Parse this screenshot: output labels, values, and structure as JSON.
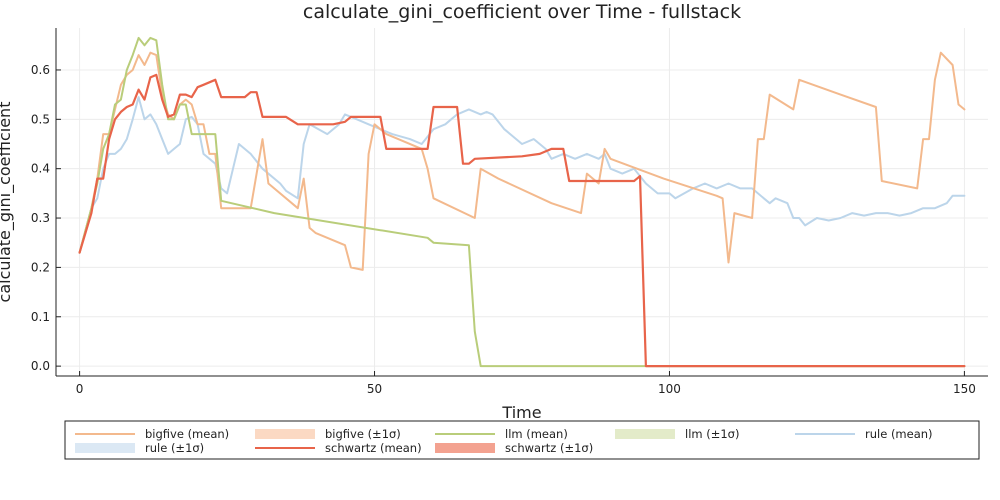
{
  "chart_data": {
    "type": "line",
    "title": "calculate_gini_coefficient over Time - fullstack",
    "xlabel": "Time",
    "ylabel": "calculate_gini_coefficient",
    "xlim": [
      -4,
      154
    ],
    "ylim": [
      -0.02,
      0.685
    ],
    "xticks": [
      0,
      50,
      100,
      150
    ],
    "yticks": [
      0.0,
      0.1,
      0.2,
      0.3,
      0.4,
      0.5,
      0.6
    ],
    "grid": true,
    "legend_position": "bottom",
    "series": [
      {
        "name": "bigfive (mean)",
        "color": "#f3b98d",
        "points": [
          [
            0,
            0.23
          ],
          [
            2,
            0.32
          ],
          [
            3,
            0.38
          ],
          [
            4,
            0.47
          ],
          [
            5,
            0.47
          ],
          [
            6,
            0.52
          ],
          [
            7,
            0.57
          ],
          [
            8,
            0.59
          ],
          [
            9,
            0.6
          ],
          [
            10,
            0.63
          ],
          [
            11,
            0.61
          ],
          [
            12,
            0.635
          ],
          [
            13,
            0.63
          ],
          [
            14,
            0.55
          ],
          [
            15,
            0.51
          ],
          [
            16,
            0.5
          ],
          [
            17,
            0.53
          ],
          [
            18,
            0.54
          ],
          [
            19,
            0.53
          ],
          [
            20,
            0.49
          ],
          [
            21,
            0.49
          ],
          [
            22,
            0.43
          ],
          [
            23,
            0.43
          ],
          [
            24,
            0.32
          ],
          [
            29,
            0.32
          ],
          [
            31,
            0.46
          ],
          [
            32,
            0.37
          ],
          [
            37,
            0.32
          ],
          [
            38,
            0.38
          ],
          [
            39,
            0.28
          ],
          [
            40,
            0.27
          ],
          [
            45,
            0.245
          ],
          [
            46,
            0.2
          ],
          [
            48,
            0.195
          ],
          [
            49,
            0.43
          ],
          [
            50,
            0.49
          ],
          [
            52,
            0.47
          ],
          [
            58,
            0.44
          ],
          [
            59,
            0.4
          ],
          [
            60,
            0.34
          ],
          [
            67,
            0.3
          ],
          [
            68,
            0.4
          ],
          [
            71,
            0.38
          ],
          [
            80,
            0.33
          ],
          [
            85,
            0.31
          ],
          [
            86,
            0.39
          ],
          [
            88,
            0.37
          ],
          [
            89,
            0.44
          ],
          [
            90,
            0.42
          ],
          [
            99,
            0.38
          ],
          [
            108,
            0.345
          ],
          [
            109,
            0.34
          ],
          [
            110,
            0.21
          ],
          [
            111,
            0.31
          ],
          [
            114,
            0.3
          ],
          [
            115,
            0.46
          ],
          [
            116,
            0.46
          ],
          [
            117,
            0.55
          ],
          [
            121,
            0.52
          ],
          [
            122,
            0.58
          ],
          [
            129,
            0.55
          ],
          [
            135,
            0.525
          ],
          [
            136,
            0.375
          ],
          [
            142,
            0.36
          ],
          [
            143,
            0.46
          ],
          [
            144,
            0.46
          ],
          [
            145,
            0.58
          ],
          [
            146,
            0.635
          ],
          [
            148,
            0.61
          ],
          [
            149,
            0.53
          ],
          [
            150,
            0.52
          ]
        ]
      },
      {
        "name": "llm (mean)",
        "color": "#b9cd7a",
        "points": [
          [
            0,
            0.23
          ],
          [
            2,
            0.32
          ],
          [
            3,
            0.37
          ],
          [
            4,
            0.44
          ],
          [
            5,
            0.47
          ],
          [
            6,
            0.53
          ],
          [
            7,
            0.54
          ],
          [
            8,
            0.6
          ],
          [
            9,
            0.63
          ],
          [
            10,
            0.665
          ],
          [
            11,
            0.65
          ],
          [
            12,
            0.665
          ],
          [
            13,
            0.66
          ],
          [
            14,
            0.57
          ],
          [
            15,
            0.5
          ],
          [
            16,
            0.5
          ],
          [
            17,
            0.53
          ],
          [
            18,
            0.53
          ],
          [
            19,
            0.47
          ],
          [
            23,
            0.47
          ],
          [
            24,
            0.335
          ],
          [
            33,
            0.31
          ],
          [
            59,
            0.26
          ],
          [
            60,
            0.25
          ],
          [
            66,
            0.245
          ],
          [
            67,
            0.07
          ],
          [
            68,
            0.0
          ],
          [
            150,
            0.0
          ]
        ]
      },
      {
        "name": "rule (mean)",
        "color": "#bcd5ea",
        "points": [
          [
            0,
            0.23
          ],
          [
            2,
            0.32
          ],
          [
            3,
            0.34
          ],
          [
            4,
            0.4
          ],
          [
            5,
            0.43
          ],
          [
            6,
            0.43
          ],
          [
            7,
            0.44
          ],
          [
            8,
            0.46
          ],
          [
            9,
            0.5
          ],
          [
            10,
            0.545
          ],
          [
            11,
            0.5
          ],
          [
            12,
            0.51
          ],
          [
            13,
            0.49
          ],
          [
            14,
            0.46
          ],
          [
            15,
            0.43
          ],
          [
            16,
            0.44
          ],
          [
            17,
            0.45
          ],
          [
            18,
            0.5
          ],
          [
            19,
            0.505
          ],
          [
            20,
            0.49
          ],
          [
            21,
            0.43
          ],
          [
            23,
            0.41
          ],
          [
            24,
            0.36
          ],
          [
            25,
            0.35
          ],
          [
            26,
            0.4
          ],
          [
            27,
            0.45
          ],
          [
            29,
            0.43
          ],
          [
            31,
            0.4
          ],
          [
            34,
            0.37
          ],
          [
            35,
            0.355
          ],
          [
            37,
            0.34
          ],
          [
            38,
            0.45
          ],
          [
            39,
            0.49
          ],
          [
            42,
            0.47
          ],
          [
            44,
            0.49
          ],
          [
            45,
            0.51
          ],
          [
            47,
            0.5
          ],
          [
            49,
            0.49
          ],
          [
            51,
            0.48
          ],
          [
            53,
            0.47
          ],
          [
            56,
            0.46
          ],
          [
            58,
            0.45
          ],
          [
            60,
            0.48
          ],
          [
            62,
            0.49
          ],
          [
            63,
            0.5
          ],
          [
            64,
            0.51
          ],
          [
            66,
            0.52
          ],
          [
            68,
            0.51
          ],
          [
            69,
            0.515
          ],
          [
            70,
            0.51
          ],
          [
            72,
            0.48
          ],
          [
            73,
            0.47
          ],
          [
            75,
            0.45
          ],
          [
            77,
            0.46
          ],
          [
            79,
            0.44
          ],
          [
            80,
            0.42
          ],
          [
            82,
            0.43
          ],
          [
            84,
            0.42
          ],
          [
            86,
            0.43
          ],
          [
            88,
            0.42
          ],
          [
            89,
            0.43
          ],
          [
            90,
            0.4
          ],
          [
            92,
            0.39
          ],
          [
            94,
            0.4
          ],
          [
            96,
            0.37
          ],
          [
            98,
            0.35
          ],
          [
            100,
            0.35
          ],
          [
            101,
            0.34
          ],
          [
            104,
            0.36
          ],
          [
            106,
            0.37
          ],
          [
            108,
            0.36
          ],
          [
            110,
            0.37
          ],
          [
            112,
            0.36
          ],
          [
            114,
            0.36
          ],
          [
            116,
            0.34
          ],
          [
            117,
            0.33
          ],
          [
            118,
            0.34
          ],
          [
            120,
            0.33
          ],
          [
            121,
            0.3
          ],
          [
            122,
            0.3
          ],
          [
            123,
            0.285
          ],
          [
            125,
            0.3
          ],
          [
            127,
            0.295
          ],
          [
            129,
            0.3
          ],
          [
            131,
            0.31
          ],
          [
            133,
            0.305
          ],
          [
            135,
            0.31
          ],
          [
            137,
            0.31
          ],
          [
            139,
            0.305
          ],
          [
            141,
            0.31
          ],
          [
            143,
            0.32
          ],
          [
            145,
            0.32
          ],
          [
            147,
            0.33
          ],
          [
            148,
            0.345
          ],
          [
            150,
            0.345
          ]
        ]
      },
      {
        "name": "schwartz (mean)",
        "color": "#e8644a",
        "points": [
          [
            0,
            0.23
          ],
          [
            2,
            0.31
          ],
          [
            3,
            0.38
          ],
          [
            4,
            0.38
          ],
          [
            5,
            0.46
          ],
          [
            6,
            0.5
          ],
          [
            7,
            0.515
          ],
          [
            8,
            0.525
          ],
          [
            9,
            0.53
          ],
          [
            10,
            0.56
          ],
          [
            11,
            0.54
          ],
          [
            12,
            0.585
          ],
          [
            13,
            0.59
          ],
          [
            14,
            0.54
          ],
          [
            15,
            0.505
          ],
          [
            16,
            0.51
          ],
          [
            17,
            0.55
          ],
          [
            18,
            0.55
          ],
          [
            19,
            0.545
          ],
          [
            20,
            0.565
          ],
          [
            21,
            0.57
          ],
          [
            23,
            0.58
          ],
          [
            24,
            0.545
          ],
          [
            28,
            0.545
          ],
          [
            29,
            0.555
          ],
          [
            30,
            0.555
          ],
          [
            31,
            0.505
          ],
          [
            35,
            0.505
          ],
          [
            37,
            0.49
          ],
          [
            43,
            0.49
          ],
          [
            45,
            0.495
          ],
          [
            46,
            0.505
          ],
          [
            51,
            0.505
          ],
          [
            52,
            0.44
          ],
          [
            59,
            0.44
          ],
          [
            60,
            0.525
          ],
          [
            64,
            0.525
          ],
          [
            65,
            0.41
          ],
          [
            66,
            0.41
          ],
          [
            67,
            0.42
          ],
          [
            75,
            0.425
          ],
          [
            78,
            0.43
          ],
          [
            80,
            0.44
          ],
          [
            82,
            0.44
          ],
          [
            83,
            0.375
          ],
          [
            92,
            0.375
          ],
          [
            94,
            0.375
          ],
          [
            95,
            0.385
          ],
          [
            96,
            0.0
          ],
          [
            150,
            0.0
          ]
        ]
      }
    ],
    "bands": [
      {
        "name": "bigfive (±1σ)",
        "color": "#fbd9c3"
      },
      {
        "name": "llm (±1σ)",
        "color": "#e3ebc9"
      },
      {
        "name": "rule (±1σ)",
        "color": "#dbe8f4"
      },
      {
        "name": "schwartz (±1σ)",
        "color": "#f3a290"
      }
    ],
    "legend": [
      {
        "label": "bigfive (mean)",
        "kind": "line",
        "color": "#f3b98d"
      },
      {
        "label": "bigfive (±1σ)",
        "kind": "band",
        "color": "#fbd9c3"
      },
      {
        "label": "llm (mean)",
        "kind": "line",
        "color": "#b9cd7a"
      },
      {
        "label": "llm (±1σ)",
        "kind": "band",
        "color": "#e3ebc9"
      },
      {
        "label": "rule (mean)",
        "kind": "line",
        "color": "#bcd5ea"
      },
      {
        "label": "rule (±1σ)",
        "kind": "band",
        "color": "#dbe8f4"
      },
      {
        "label": "schwartz (mean)",
        "kind": "line",
        "color": "#e8644a"
      },
      {
        "label": "schwartz (±1σ)",
        "kind": "band",
        "color": "#f3a290"
      }
    ]
  }
}
